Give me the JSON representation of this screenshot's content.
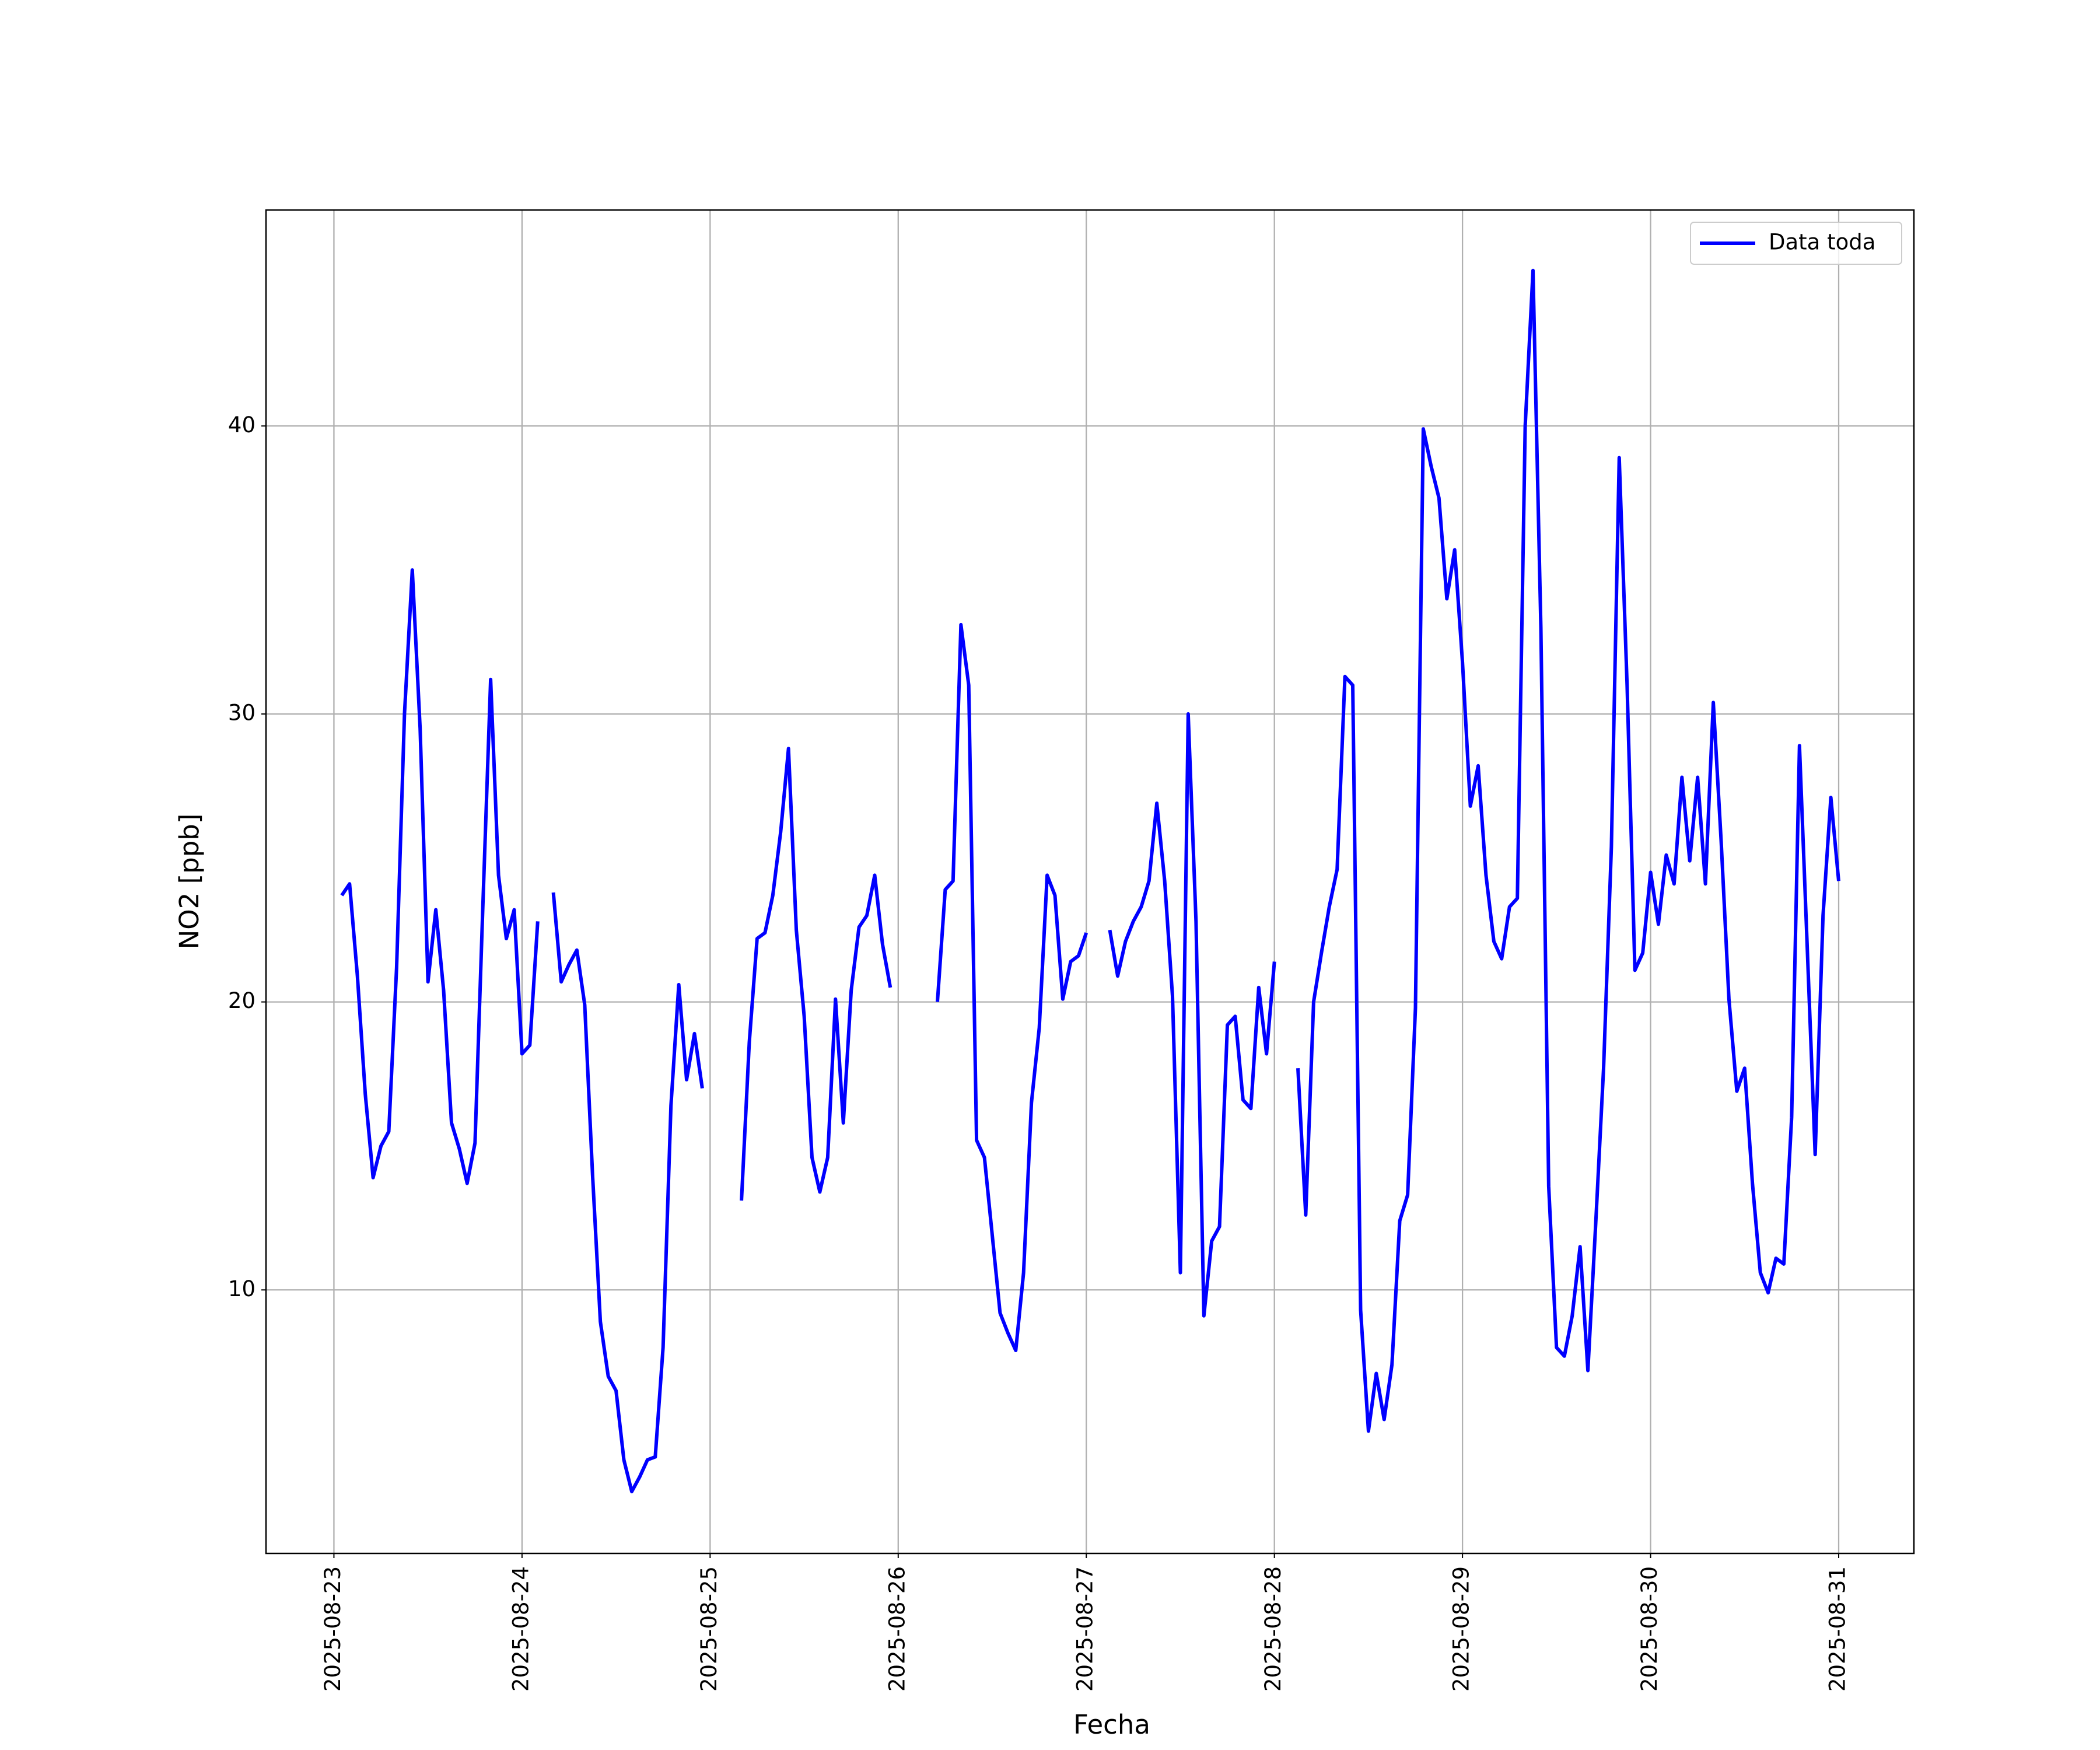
{
  "chart_data": {
    "type": "line",
    "xlabel": "Fecha",
    "ylabel": "NO2 [ppb]",
    "x": [
      "2025-08-23 01:00",
      "2025-08-23 02:00",
      "2025-08-23 03:00",
      "2025-08-23 04:00",
      "2025-08-23 05:00",
      "2025-08-23 06:00",
      "2025-08-23 07:00",
      "2025-08-23 08:00",
      "2025-08-23 09:00",
      "2025-08-23 10:00",
      "2025-08-23 11:00",
      "2025-08-23 12:00",
      "2025-08-23 13:00",
      "2025-08-23 14:00",
      "2025-08-23 15:00",
      "2025-08-23 16:00",
      "2025-08-23 17:00",
      "2025-08-23 18:00",
      "2025-08-23 19:00",
      "2025-08-23 20:00",
      "2025-08-23 21:00",
      "2025-08-23 22:00",
      "2025-08-23 23:00",
      "2025-08-24 00:00",
      "2025-08-24 01:00",
      "2025-08-24 02:00",
      "2025-08-24 03:00",
      "2025-08-24 04:00",
      "2025-08-24 05:00",
      "2025-08-24 06:00",
      "2025-08-24 07:00",
      "2025-08-24 08:00",
      "2025-08-24 09:00",
      "2025-08-24 10:00",
      "2025-08-24 11:00",
      "2025-08-24 12:00",
      "2025-08-24 13:00",
      "2025-08-24 14:00",
      "2025-08-24 15:00",
      "2025-08-24 16:00",
      "2025-08-24 17:00",
      "2025-08-24 18:00",
      "2025-08-24 19:00",
      "2025-08-24 20:00",
      "2025-08-24 21:00",
      "2025-08-24 22:00",
      "2025-08-24 23:00",
      "2025-08-25 00:00",
      "2025-08-25 04:00",
      "2025-08-25 05:00",
      "2025-08-25 06:00",
      "2025-08-25 07:00",
      "2025-08-25 08:00",
      "2025-08-25 09:00",
      "2025-08-25 10:00",
      "2025-08-25 11:00",
      "2025-08-25 12:00",
      "2025-08-25 13:00",
      "2025-08-25 14:00",
      "2025-08-25 15:00",
      "2025-08-25 16:00",
      "2025-08-25 17:00",
      "2025-08-25 18:00",
      "2025-08-25 19:00",
      "2025-08-25 20:00",
      "2025-08-25 21:00",
      "2025-08-25 22:00",
      "2025-08-25 23:00",
      "2025-08-26 00:00",
      "2025-08-26 05:00",
      "2025-08-26 06:00",
      "2025-08-26 07:00",
      "2025-08-26 08:00",
      "2025-08-26 09:00",
      "2025-08-26 10:00",
      "2025-08-26 11:00",
      "2025-08-26 12:00",
      "2025-08-26 13:00",
      "2025-08-26 14:00",
      "2025-08-26 15:00",
      "2025-08-26 16:00",
      "2025-08-26 17:00",
      "2025-08-26 18:00",
      "2025-08-26 19:00",
      "2025-08-26 20:00",
      "2025-08-26 21:00",
      "2025-08-26 22:00",
      "2025-08-26 23:00",
      "2025-08-27 00:00",
      "2025-08-27 01:00",
      "2025-08-27 03:00",
      "2025-08-27 04:00",
      "2025-08-27 05:00",
      "2025-08-27 06:00",
      "2025-08-27 07:00",
      "2025-08-27 08:00",
      "2025-08-27 09:00",
      "2025-08-27 10:00",
      "2025-08-27 11:00",
      "2025-08-27 12:00",
      "2025-08-27 13:00",
      "2025-08-27 14:00",
      "2025-08-27 15:00",
      "2025-08-27 16:00",
      "2025-08-27 17:00",
      "2025-08-27 18:00",
      "2025-08-27 19:00",
      "2025-08-27 20:00",
      "2025-08-27 21:00",
      "2025-08-27 22:00",
      "2025-08-27 23:00",
      "2025-08-28 00:00",
      "2025-08-28 01:00",
      "2025-08-28 03:00",
      "2025-08-28 04:00",
      "2025-08-28 05:00",
      "2025-08-28 06:00",
      "2025-08-28 07:00",
      "2025-08-28 08:00",
      "2025-08-28 09:00",
      "2025-08-28 10:00",
      "2025-08-28 11:00",
      "2025-08-28 12:00",
      "2025-08-28 13:00",
      "2025-08-28 14:00",
      "2025-08-28 15:00",
      "2025-08-28 16:00",
      "2025-08-28 17:00",
      "2025-08-28 18:00",
      "2025-08-28 19:00",
      "2025-08-28 20:00",
      "2025-08-28 21:00",
      "2025-08-28 22:00",
      "2025-08-28 23:00",
      "2025-08-29 00:00",
      "2025-08-29 01:00",
      "2025-08-29 02:00",
      "2025-08-29 03:00",
      "2025-08-29 04:00",
      "2025-08-29 05:00",
      "2025-08-29 06:00",
      "2025-08-29 07:00",
      "2025-08-29 08:00",
      "2025-08-29 09:00",
      "2025-08-29 10:00",
      "2025-08-29 11:00",
      "2025-08-29 12:00",
      "2025-08-29 13:00",
      "2025-08-29 14:00",
      "2025-08-29 15:00",
      "2025-08-29 16:00",
      "2025-08-29 17:00",
      "2025-08-29 18:00",
      "2025-08-29 19:00",
      "2025-08-29 20:00",
      "2025-08-29 21:00",
      "2025-08-29 22:00",
      "2025-08-29 23:00",
      "2025-08-30 00:00",
      "2025-08-30 01:00",
      "2025-08-30 02:00",
      "2025-08-30 03:00",
      "2025-08-30 04:00",
      "2025-08-30 05:00",
      "2025-08-30 06:00",
      "2025-08-30 07:00",
      "2025-08-30 08:00",
      "2025-08-30 09:00",
      "2025-08-30 10:00",
      "2025-08-30 11:00",
      "2025-08-30 12:00",
      "2025-08-30 13:00",
      "2025-08-30 14:00",
      "2025-08-30 15:00",
      "2025-08-30 16:00",
      "2025-08-30 17:00",
      "2025-08-30 18:00",
      "2025-08-30 19:00",
      "2025-08-30 20:00",
      "2025-08-30 21:00",
      "2025-08-30 22:00",
      "2025-08-30 23:00",
      "2025-08-31 00:00"
    ],
    "series": [
      {
        "name": "Data toda",
        "color": "#0000ff",
        "values": [
          23.7,
          24.1,
          20.9,
          16.8,
          13.9,
          15.0,
          15.5,
          21.2,
          30.0,
          35.0,
          29.5,
          20.7,
          23.2,
          20.4,
          15.8,
          14.9,
          13.7,
          15.1,
          23.3,
          31.2,
          24.4,
          22.2,
          23.2,
          18.2,
          18.5,
          22.8,
          null,
          23.8,
          20.7,
          21.3,
          21.8,
          19.9,
          14.0,
          8.9,
          7.0,
          6.5,
          4.1,
          3.0,
          3.5,
          4.1,
          4.2,
          8.0,
          16.4,
          20.6,
          17.3,
          18.9,
          17.0,
          null,
          13.1,
          18.6,
          22.2,
          22.4,
          23.7,
          25.9,
          28.8,
          22.5,
          19.5,
          14.6,
          13.4,
          14.6,
          20.1,
          15.8,
          20.4,
          22.6,
          23.0,
          24.4,
          22.0,
          20.5,
          null,
          20.0,
          23.9,
          24.2,
          33.1,
          31.0,
          15.2,
          14.6,
          11.9,
          9.2,
          8.5,
          7.9,
          10.6,
          16.5,
          19.1,
          24.4,
          23.7,
          20.1,
          21.4,
          21.6,
          22.4,
          null,
          22.5,
          20.9,
          22.1,
          22.8,
          23.3,
          24.2,
          26.9,
          24.2,
          20.2,
          10.6,
          30.0,
          22.8,
          9.1,
          11.7,
          12.2,
          19.2,
          19.5,
          16.6,
          16.3,
          20.5,
          18.2,
          21.4,
          null,
          17.7,
          12.6,
          20.0,
          21.7,
          23.3,
          24.6,
          31.3,
          31.0,
          9.3,
          5.1,
          7.1,
          5.5,
          7.4,
          12.4,
          13.3,
          19.8,
          39.9,
          38.6,
          37.5,
          34.0,
          35.7,
          31.8,
          26.8,
          28.2,
          24.4,
          22.1,
          21.5,
          23.3,
          23.6,
          40.0,
          45.4,
          33.0,
          13.6,
          8.0,
          7.7,
          9.1,
          11.5,
          7.2,
          12.3,
          17.7,
          25.4,
          38.9,
          31.0,
          21.1,
          21.7,
          24.5,
          22.7,
          25.1,
          24.1,
          27.8,
          24.9,
          27.8,
          24.1,
          30.4,
          25.6,
          20.1,
          16.9,
          17.7,
          13.7,
          10.6,
          9.9,
          11.1,
          10.9,
          16.0,
          28.9,
          21.8,
          14.7,
          23.0,
          27.1,
          24.2
        ]
      }
    ],
    "xlim": [
      "2025-08-22 15:20",
      "2025-08-31 09:36"
    ],
    "xticks": [
      "2025-08-23",
      "2025-08-24",
      "2025-08-25",
      "2025-08-26",
      "2025-08-27",
      "2025-08-28",
      "2025-08-29",
      "2025-08-30",
      "2025-08-31"
    ],
    "ylim": [
      0.85,
      47.5
    ],
    "yticks": [
      10,
      20,
      30,
      40
    ],
    "grid": true,
    "legend": "upper right"
  }
}
